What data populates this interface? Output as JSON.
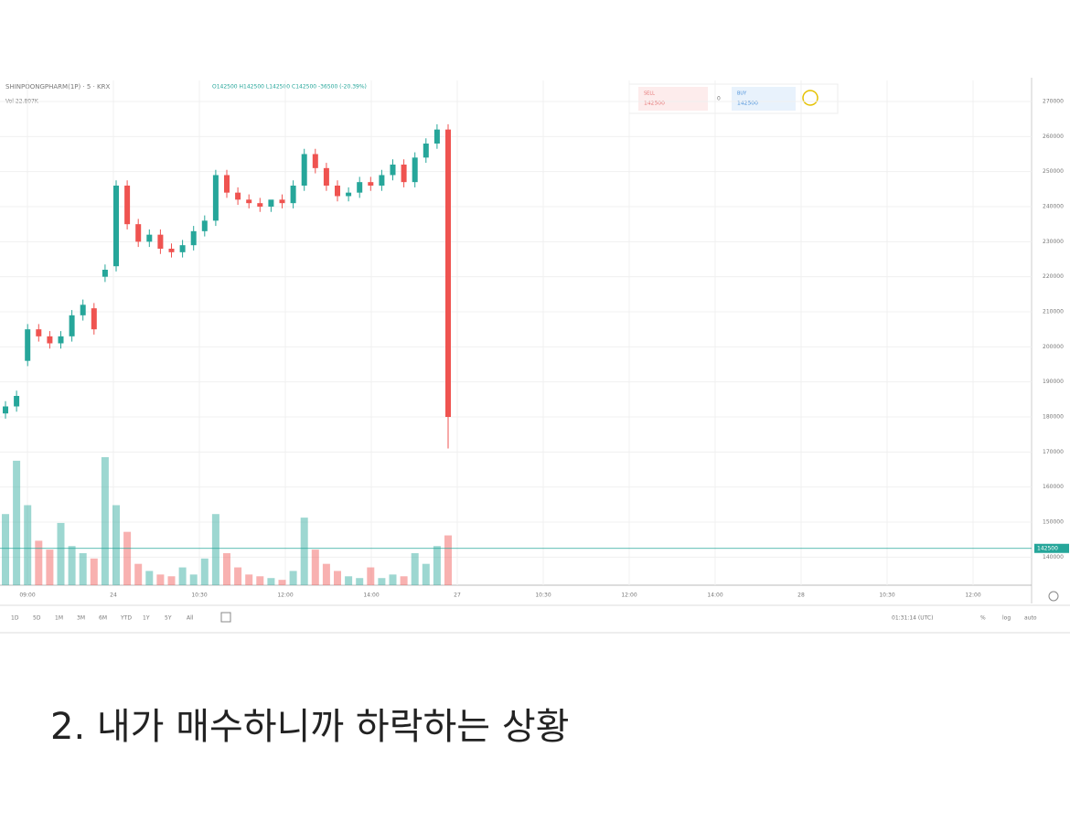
{
  "chart_data": {
    "type": "candlestick",
    "symbol": "SHINPOONGPHARM(1P) · 5 · KRX",
    "ohlc_text": "O142500 H142500 L142500 C142500 -36500 (-20.39%)",
    "volume_text": "Vol 22.807K",
    "up_color": "#26a69a",
    "down_color": "#ef5350",
    "open": [
      181000,
      183000,
      196000,
      205000,
      203000,
      201000,
      203000,
      209000,
      211000,
      220000,
      223000,
      246000,
      235000,
      230000,
      232000,
      228000,
      227000,
      229000,
      233000,
      236000,
      249000,
      244000,
      242000,
      241000,
      240000,
      242000,
      241000,
      246000,
      255000,
      251000,
      246000,
      243000,
      244000,
      247000,
      246000,
      249000,
      252000,
      247000,
      254000,
      258000,
      262000
    ],
    "high": [
      184500,
      187500,
      206500,
      206500,
      204500,
      204500,
      210500,
      213500,
      212500,
      223500,
      247500,
      247500,
      236500,
      233500,
      233500,
      229500,
      230500,
      234500,
      237500,
      250500,
      250500,
      245500,
      243500,
      242500,
      241500,
      243500,
      247500,
      256500,
      256500,
      252500,
      247500,
      245500,
      248500,
      248500,
      250500,
      253500,
      253500,
      255500,
      259500,
      263500,
      263500
    ],
    "low": [
      179500,
      181500,
      194500,
      201500,
      199500,
      199500,
      201500,
      207500,
      203500,
      218500,
      221500,
      233500,
      228500,
      228500,
      226500,
      225500,
      225500,
      227500,
      231500,
      234500,
      242500,
      240500,
      239500,
      238500,
      238500,
      239500,
      239500,
      244500,
      249500,
      244500,
      241500,
      241500,
      242500,
      244500,
      244500,
      247500,
      245500,
      245500,
      252500,
      256500,
      171000
    ],
    "close": [
      183000,
      186000,
      205000,
      203000,
      201000,
      203000,
      209000,
      212000,
      205000,
      222000,
      246000,
      235000,
      230000,
      232000,
      228000,
      227000,
      229000,
      233000,
      236000,
      249000,
      244000,
      242000,
      241000,
      240000,
      242000,
      241000,
      246000,
      255000,
      251000,
      246000,
      243000,
      244000,
      247000,
      246000,
      249000,
      252000,
      247000,
      254000,
      258000,
      262000,
      180000
    ],
    "volume": [
      40000,
      70000,
      45000,
      25000,
      20000,
      35000,
      22000,
      18000,
      15000,
      72000,
      45000,
      30000,
      12000,
      8000,
      6000,
      5000,
      10000,
      6000,
      15000,
      40000,
      18000,
      10000,
      6000,
      5000,
      4000,
      3000,
      8000,
      38000,
      20000,
      12000,
      8000,
      5000,
      4000,
      10000,
      4000,
      6000,
      5000,
      18000,
      12000,
      22000,
      28000
    ],
    "ylim": [
      132000,
      276000
    ],
    "yticks": [
      140000,
      150000,
      160000,
      170000,
      180000,
      190000,
      200000,
      210000,
      220000,
      230000,
      240000,
      250000,
      260000,
      270000
    ],
    "last_price": 142500,
    "x_labels": [
      "09:00",
      "24",
      "10:30",
      "12:00",
      "14:00",
      "27",
      "10:30",
      "12:00",
      "14:00",
      "28",
      "10:30",
      "12:00"
    ],
    "grid": true
  },
  "order_panel": {
    "sell": "SELL",
    "sell_price": "142500",
    "spread": "0",
    "buy": "BUY",
    "buy_price": "142500"
  },
  "toolbar": {
    "ranges": [
      "1D",
      "5D",
      "1M",
      "3M",
      "6M",
      "YTD",
      "1Y",
      "5Y",
      "All"
    ],
    "clock": "01:31:14 (UTC)",
    "options": [
      "%",
      "log",
      "auto"
    ]
  },
  "caption": "2. 내가 매수하니까 하락하는 상황"
}
